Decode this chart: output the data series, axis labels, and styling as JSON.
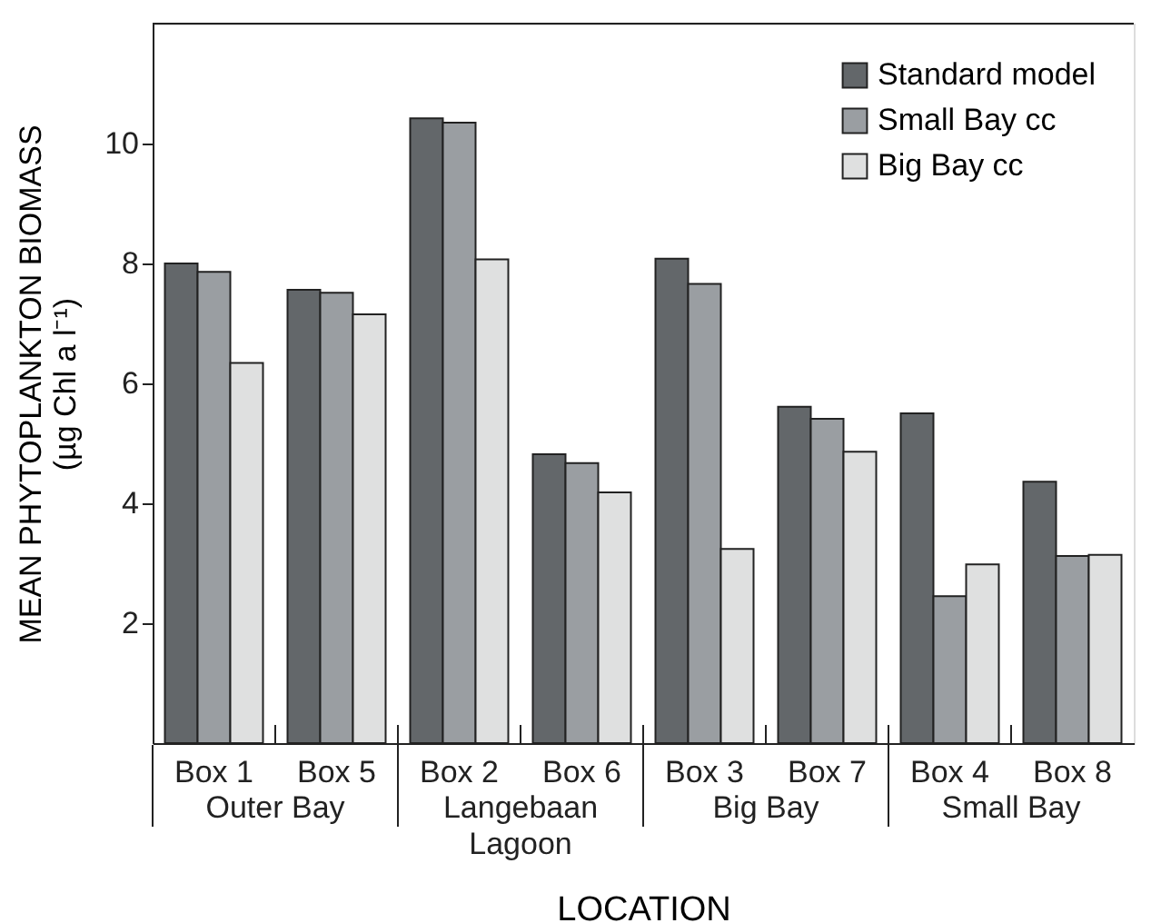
{
  "chart_data": {
    "type": "bar",
    "categories": [
      "Box 1",
      "Box 5",
      "Box 2",
      "Box 6",
      "Box 3",
      "Box 7",
      "Box 4",
      "Box 8"
    ],
    "series": [
      {
        "name": "Standard model",
        "color": "#63676a",
        "values": [
          8.0,
          7.56,
          10.42,
          4.82,
          8.08,
          5.61,
          5.5,
          4.36
        ]
      },
      {
        "name": "Small Bay cc",
        "color": "#9a9ea2",
        "values": [
          7.86,
          7.51,
          10.35,
          4.67,
          7.66,
          5.41,
          2.45,
          3.12
        ]
      },
      {
        "name": "Big Bay cc",
        "color": "#dfe0e0",
        "values": [
          6.34,
          7.15,
          8.07,
          4.18,
          3.24,
          4.86,
          2.98,
          3.14
        ]
      }
    ],
    "xlabel": "LOCATION",
    "ylabel": "MEAN PHYTOPLANKTON BIOMASS\n(µg Chl a l⁻¹)",
    "annotations": [
      "Outer Bay",
      "Langebaan\nLagoon",
      "Big Bay",
      "Small Bay"
    ],
    "ylim": [
      0,
      12
    ],
    "yticks": [
      2,
      4,
      6,
      8,
      10
    ],
    "grid": false,
    "legend": "top right"
  }
}
